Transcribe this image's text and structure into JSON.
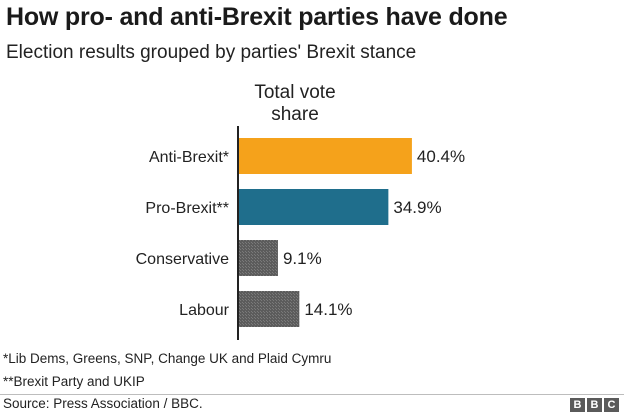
{
  "title": "How pro- and anti-Brexit parties have done",
  "subtitle": "Election results grouped by parties' Brexit stance",
  "chart_data": {
    "type": "bar",
    "orientation": "horizontal",
    "column_header": [
      "Total vote",
      "share"
    ],
    "categories": [
      "Anti-Brexit*",
      "Pro-Brexit**",
      "Conservative",
      "Labour"
    ],
    "values": [
      40.4,
      34.9,
      9.1,
      14.1
    ],
    "value_labels": [
      "40.4%",
      "34.9%",
      "9.1%",
      "14.1%"
    ],
    "unit": "%",
    "xlim": [
      0,
      100
    ],
    "colors": [
      "#f5a21b",
      "#1f6e8c",
      "#5c5c5c",
      "#5c5c5c"
    ],
    "patterned": [
      false,
      false,
      true,
      true
    ],
    "grid": false
  },
  "footnotes": [
    "*Lib Dems, Greens, SNP, Change UK and Plaid Cymru",
    "**Brexit Party and UKIP"
  ],
  "source": "Source: Press Association / BBC.",
  "logo": [
    "B",
    "B",
    "C"
  ]
}
